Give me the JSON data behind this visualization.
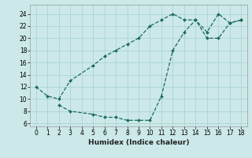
{
  "xlabel": "Humidex (Indice chaleur)",
  "bg_color": "#cce8e8",
  "grid_color": "#aad4d4",
  "line_color": "#1a6b5a",
  "line1_x": [
    0,
    1,
    2,
    3,
    5,
    6,
    7,
    8,
    9,
    10,
    11,
    12,
    13,
    14,
    15,
    16,
    17,
    18
  ],
  "line1_y": [
    12,
    10.5,
    10,
    13,
    15.5,
    17,
    18,
    19,
    20,
    22,
    23,
    24,
    23,
    23,
    21,
    24,
    22.5,
    23
  ],
  "line2_x": [
    2,
    3,
    5,
    6,
    7,
    8,
    9,
    10,
    11,
    12,
    13,
    14,
    15,
    16,
    17,
    18
  ],
  "line2_y": [
    9,
    8,
    7.5,
    7,
    7,
    6.5,
    6.5,
    6.5,
    10.5,
    18,
    21,
    23,
    20,
    20,
    22.5,
    23
  ],
  "xlim": [
    -0.5,
    18.5
  ],
  "ylim": [
    5.5,
    25.5
  ],
  "xticks": [
    0,
    1,
    2,
    3,
    4,
    5,
    6,
    7,
    8,
    9,
    10,
    11,
    12,
    13,
    14,
    15,
    16,
    17,
    18
  ],
  "yticks": [
    6,
    8,
    10,
    12,
    14,
    16,
    18,
    20,
    22,
    24
  ]
}
